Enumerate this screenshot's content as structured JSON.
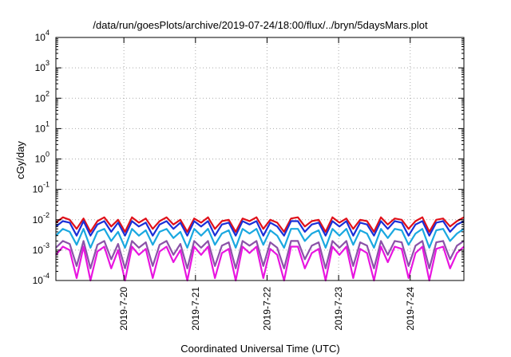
{
  "chart_data": {
    "type": "line",
    "title": "/data/run/goesPlots/archive/2019-07-24/18:00/flux/../bryn/5daysMars.plot",
    "xlabel": "Coordinated Universal Time (UTC)",
    "ylabel": "cGy/day",
    "yscale": "log",
    "ylim_exp": [
      -4,
      4
    ],
    "y_tick_labels": [
      {
        "base": "10",
        "exp": "-4"
      },
      {
        "base": "10",
        "exp": "-3"
      },
      {
        "base": "10",
        "exp": "-2"
      },
      {
        "base": "10",
        "exp": "-1"
      },
      {
        "base": "10",
        "exp": "0"
      },
      {
        "base": "10",
        "exp": "1"
      },
      {
        "base": "10",
        "exp": "2"
      },
      {
        "base": "10",
        "exp": "3"
      },
      {
        "base": "10",
        "exp": "4"
      }
    ],
    "x_tick_labels": [
      "2019-7-20",
      "2019-7-21",
      "2019-7-22",
      "2019-7-23",
      "2019-7-24"
    ],
    "x_tick_days": [
      20,
      21,
      22,
      23,
      24
    ],
    "xlim_days": [
      19.05,
      24.75
    ],
    "grid": true,
    "legend": "none",
    "series": [
      {
        "color": "#e0101a",
        "values": [
          0.008,
          0.012,
          0.01,
          0.005,
          0.011,
          0.004,
          0.009,
          0.012,
          0.006,
          0.01,
          0.004,
          0.012,
          0.008,
          0.011,
          0.005,
          0.009,
          0.012,
          0.007,
          0.01,
          0.004,
          0.011,
          0.008,
          0.012,
          0.005,
          0.009,
          0.01,
          0.004,
          0.011,
          0.009,
          0.012,
          0.005,
          0.01,
          0.008,
          0.004,
          0.011,
          0.012,
          0.006,
          0.009,
          0.01,
          0.004,
          0.012,
          0.008,
          0.011,
          0.005,
          0.01,
          0.009,
          0.004,
          0.012,
          0.007,
          0.011,
          0.01,
          0.005,
          0.009,
          0.012,
          0.004,
          0.01,
          0.011,
          0.006,
          0.009,
          0.012
        ]
      },
      {
        "color": "#1a2fd8",
        "values": [
          0.006,
          0.009,
          0.008,
          0.003,
          0.009,
          0.003,
          0.007,
          0.009,
          0.004,
          0.008,
          0.003,
          0.009,
          0.006,
          0.008,
          0.003,
          0.007,
          0.009,
          0.005,
          0.008,
          0.003,
          0.009,
          0.006,
          0.009,
          0.003,
          0.007,
          0.008,
          0.003,
          0.009,
          0.007,
          0.009,
          0.003,
          0.008,
          0.006,
          0.003,
          0.009,
          0.009,
          0.004,
          0.007,
          0.008,
          0.003,
          0.009,
          0.006,
          0.009,
          0.003,
          0.008,
          0.007,
          0.003,
          0.009,
          0.005,
          0.009,
          0.008,
          0.003,
          0.007,
          0.009,
          0.003,
          0.008,
          0.009,
          0.004,
          0.007,
          0.009
        ]
      },
      {
        "color": "#1aa8e0",
        "values": [
          0.003,
          0.005,
          0.004,
          0.0015,
          0.005,
          0.0012,
          0.004,
          0.005,
          0.002,
          0.004,
          0.0012,
          0.005,
          0.003,
          0.0045,
          0.0015,
          0.004,
          0.005,
          0.0025,
          0.004,
          0.0012,
          0.005,
          0.003,
          0.005,
          0.0015,
          0.0035,
          0.0045,
          0.0012,
          0.005,
          0.0035,
          0.005,
          0.0015,
          0.0045,
          0.003,
          0.0012,
          0.005,
          0.005,
          0.002,
          0.0035,
          0.0045,
          0.0012,
          0.005,
          0.003,
          0.005,
          0.0015,
          0.0045,
          0.0035,
          0.0012,
          0.005,
          0.0025,
          0.005,
          0.0045,
          0.0015,
          0.0035,
          0.005,
          0.0012,
          0.0045,
          0.005,
          0.002,
          0.0035,
          0.005
        ]
      },
      {
        "color": "#8b52a8",
        "values": [
          0.0012,
          0.002,
          0.0016,
          0.0003,
          0.002,
          0.00025,
          0.0015,
          0.002,
          0.0005,
          0.0016,
          0.00025,
          0.002,
          0.0012,
          0.0018,
          0.0003,
          0.0015,
          0.002,
          0.0007,
          0.0016,
          0.00025,
          0.002,
          0.0012,
          0.002,
          0.0003,
          0.0014,
          0.0018,
          0.00025,
          0.002,
          0.0014,
          0.002,
          0.0003,
          0.0018,
          0.0012,
          0.00025,
          0.002,
          0.002,
          0.0005,
          0.0014,
          0.0018,
          0.00025,
          0.002,
          0.0012,
          0.002,
          0.0003,
          0.0018,
          0.0014,
          0.00025,
          0.002,
          0.0007,
          0.002,
          0.0018,
          0.0003,
          0.0014,
          0.002,
          0.00025,
          0.0018,
          0.002,
          0.0005,
          0.0014,
          0.002
        ]
      },
      {
        "color": "#e815e0",
        "values": [
          0.0007,
          0.0013,
          0.001,
          0.00012,
          0.0013,
          0.0001,
          0.0009,
          0.0013,
          0.00025,
          0.001,
          0.0001,
          0.0013,
          0.0007,
          0.0011,
          0.00012,
          0.0009,
          0.0013,
          0.0004,
          0.001,
          0.0001,
          0.0013,
          0.0007,
          0.0013,
          0.00012,
          0.0008,
          0.0011,
          0.0001,
          0.0013,
          0.0008,
          0.0013,
          0.00012,
          0.0011,
          0.0007,
          0.0001,
          0.0013,
          0.0013,
          0.00025,
          0.0008,
          0.0011,
          0.0001,
          0.0013,
          0.0007,
          0.0013,
          0.00012,
          0.0011,
          0.0008,
          0.0001,
          0.0013,
          0.0004,
          0.0013,
          0.0011,
          0.00012,
          0.0008,
          0.0013,
          0.0001,
          0.0011,
          0.0013,
          0.00025,
          0.0008,
          0.0013
        ]
      }
    ]
  }
}
